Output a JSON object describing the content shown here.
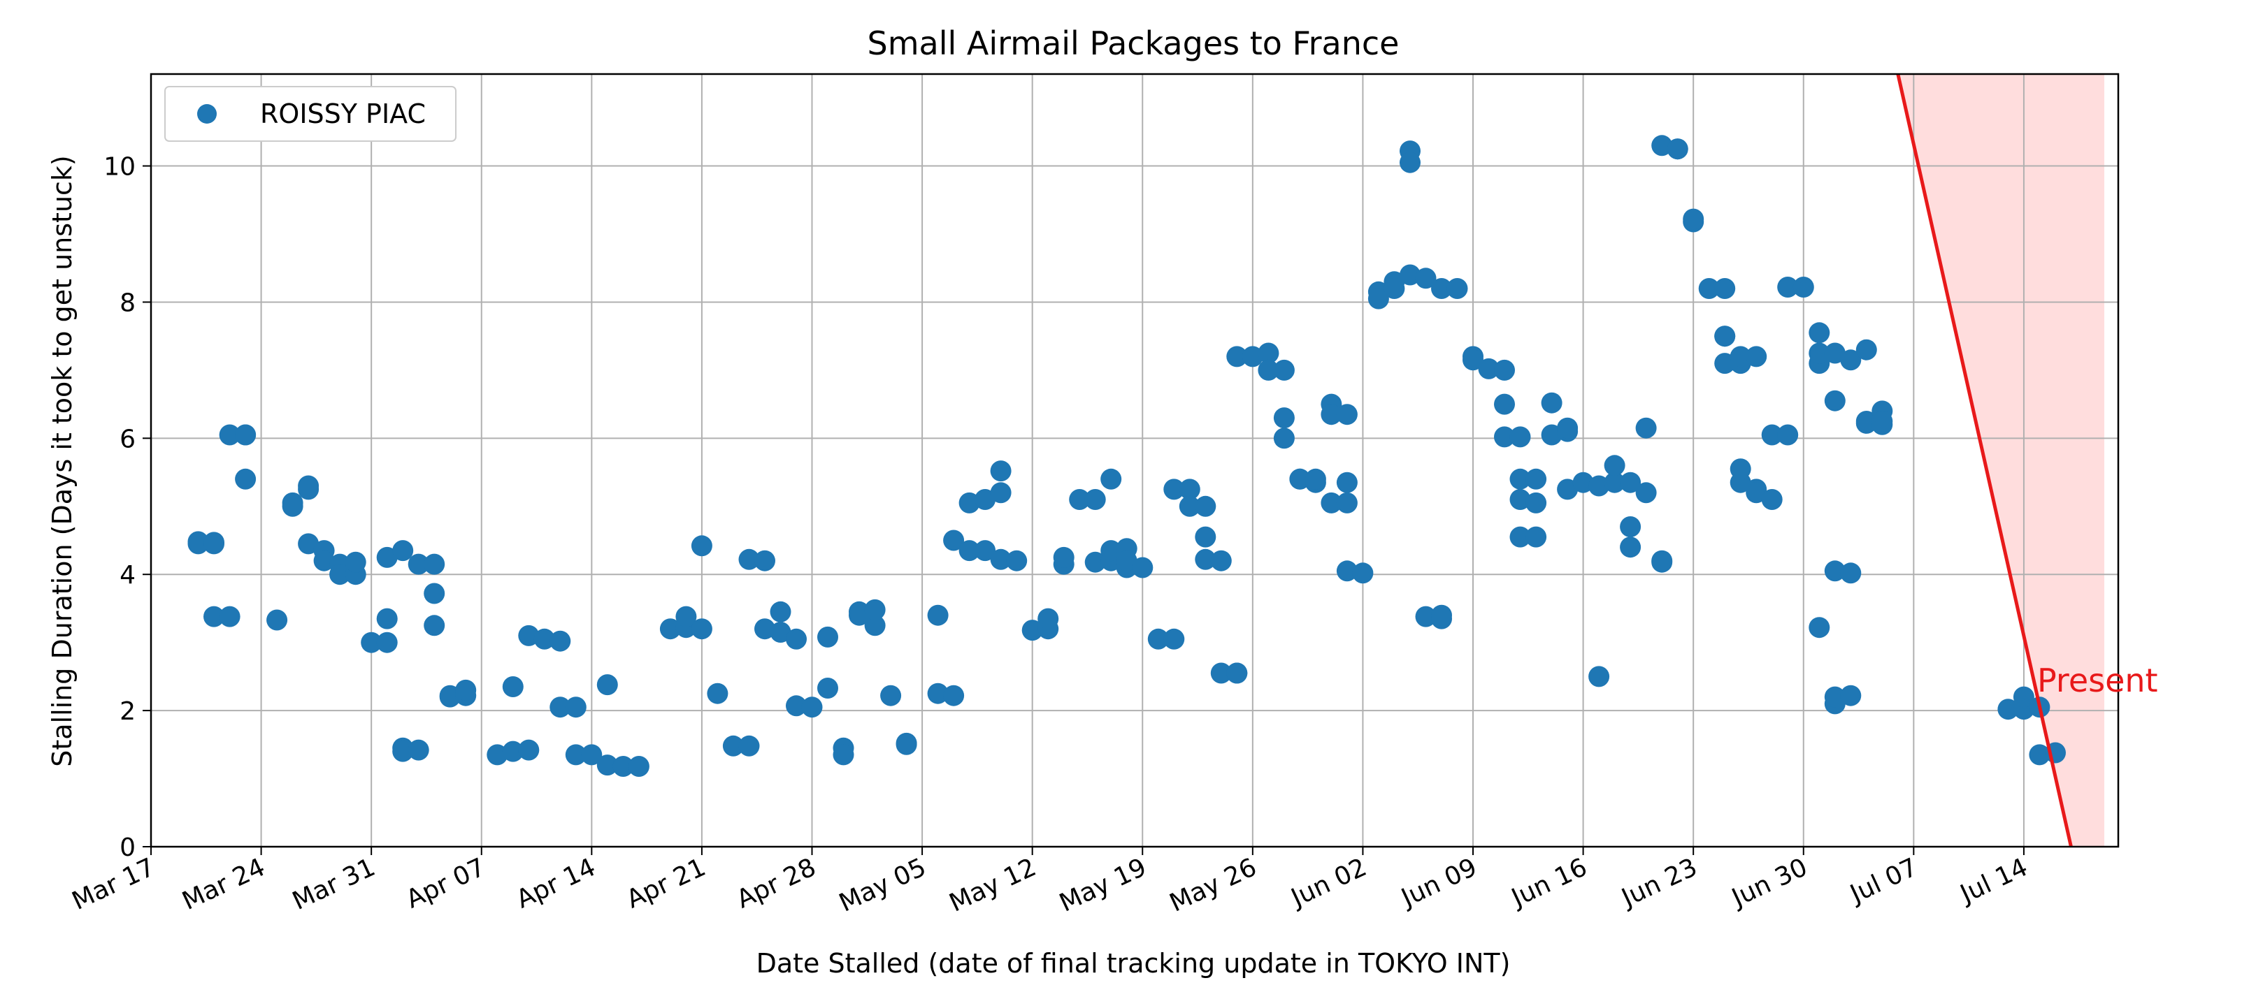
{
  "chart_data": {
    "type": "scatter",
    "title": "Small Airmail Packages to France",
    "xlabel": "Date Stalled (date of final tracking update in TOKYO INT)",
    "ylabel": "Stalling Duration (Days it took to get unstuck)",
    "ylim": [
      0,
      11.35
    ],
    "y_ticks": [
      0,
      2,
      4,
      6,
      8,
      10
    ],
    "xlim": [
      "2024-03-17",
      "2024-07-20"
    ],
    "x_ticks": [
      "2024-03-17",
      "2024-03-24",
      "2024-03-31",
      "2024-04-07",
      "2024-04-14",
      "2024-04-21",
      "2024-04-28",
      "2024-05-05",
      "2024-05-12",
      "2024-05-19",
      "2024-05-26",
      "2024-06-02",
      "2024-06-09",
      "2024-06-16",
      "2024-06-23",
      "2024-06-30",
      "2024-07-07",
      "2024-07-14"
    ],
    "x_tick_labels": [
      "Mar 17",
      "Mar 24",
      "Mar 31",
      "Apr 07",
      "Apr 14",
      "Apr 21",
      "Apr 28",
      "May 05",
      "May 12",
      "May 19",
      "May 26",
      "Jun 02",
      "Jun 09",
      "Jun 16",
      "Jun 23",
      "Jun 30",
      "Jul 07",
      "Jul 14"
    ],
    "grid": true,
    "legend_position": "top-left",
    "series": [
      {
        "name": "ROISSY PIAC",
        "color": "#1f77b4",
        "points": [
          [
            "2024-03-20",
            4.45
          ],
          [
            "2024-03-20",
            4.48
          ],
          [
            "2024-03-21",
            4.45
          ],
          [
            "2024-03-21",
            4.47
          ],
          [
            "2024-03-21",
            3.38
          ],
          [
            "2024-03-22",
            3.38
          ],
          [
            "2024-03-22",
            6.05
          ],
          [
            "2024-03-23",
            6.05
          ],
          [
            "2024-03-23",
            6.05
          ],
          [
            "2024-03-23",
            5.4
          ],
          [
            "2024-03-25",
            3.33
          ],
          [
            "2024-03-26",
            5.0
          ],
          [
            "2024-03-26",
            5.05
          ],
          [
            "2024-03-27",
            5.3
          ],
          [
            "2024-03-27",
            5.25
          ],
          [
            "2024-03-27",
            4.45
          ],
          [
            "2024-03-28",
            4.35
          ],
          [
            "2024-03-28",
            4.2
          ],
          [
            "2024-03-29",
            4.15
          ],
          [
            "2024-03-29",
            4.0
          ],
          [
            "2024-03-30",
            4.0
          ],
          [
            "2024-03-30",
            4.18
          ],
          [
            "2024-03-31",
            3.0
          ],
          [
            "2024-04-01",
            3.0
          ],
          [
            "2024-04-01",
            3.35
          ],
          [
            "2024-04-01",
            4.25
          ],
          [
            "2024-04-02",
            4.35
          ],
          [
            "2024-04-02",
            1.45
          ],
          [
            "2024-04-02",
            1.4
          ],
          [
            "2024-04-03",
            1.42
          ],
          [
            "2024-04-03",
            4.15
          ],
          [
            "2024-04-04",
            4.15
          ],
          [
            "2024-04-04",
            3.25
          ],
          [
            "2024-04-04",
            3.72
          ],
          [
            "2024-04-05",
            2.22
          ],
          [
            "2024-04-05",
            2.2
          ],
          [
            "2024-04-06",
            2.22
          ],
          [
            "2024-04-06",
            2.3
          ],
          [
            "2024-04-08",
            1.35
          ],
          [
            "2024-04-09",
            1.4
          ],
          [
            "2024-04-09",
            2.35
          ],
          [
            "2024-04-10",
            1.42
          ],
          [
            "2024-04-10",
            3.1
          ],
          [
            "2024-04-11",
            3.05
          ],
          [
            "2024-04-12",
            3.02
          ],
          [
            "2024-04-12",
            2.05
          ],
          [
            "2024-04-13",
            2.05
          ],
          [
            "2024-04-13",
            1.35
          ],
          [
            "2024-04-14",
            1.35
          ],
          [
            "2024-04-15",
            2.38
          ],
          [
            "2024-04-15",
            1.2
          ],
          [
            "2024-04-16",
            1.18
          ],
          [
            "2024-04-17",
            1.18
          ],
          [
            "2024-04-19",
            3.2
          ],
          [
            "2024-04-20",
            3.22
          ],
          [
            "2024-04-20",
            3.38
          ],
          [
            "2024-04-21",
            3.2
          ],
          [
            "2024-04-21",
            4.42
          ],
          [
            "2024-04-22",
            2.25
          ],
          [
            "2024-04-23",
            1.48
          ],
          [
            "2024-04-24",
            1.48
          ],
          [
            "2024-04-24",
            4.22
          ],
          [
            "2024-04-25",
            4.2
          ],
          [
            "2024-04-25",
            3.2
          ],
          [
            "2024-04-26",
            3.45
          ],
          [
            "2024-04-26",
            3.15
          ],
          [
            "2024-04-27",
            3.05
          ],
          [
            "2024-04-27",
            2.07
          ],
          [
            "2024-04-28",
            2.05
          ],
          [
            "2024-04-29",
            2.33
          ],
          [
            "2024-04-29",
            3.08
          ],
          [
            "2024-04-30",
            1.45
          ],
          [
            "2024-04-30",
            1.35
          ],
          [
            "2024-05-01",
            3.4
          ],
          [
            "2024-05-01",
            3.45
          ],
          [
            "2024-05-02",
            3.25
          ],
          [
            "2024-05-02",
            3.48
          ],
          [
            "2024-05-03",
            2.22
          ],
          [
            "2024-05-04",
            1.52
          ],
          [
            "2024-05-04",
            1.5
          ],
          [
            "2024-05-06",
            3.4
          ],
          [
            "2024-05-06",
            2.25
          ],
          [
            "2024-05-07",
            2.22
          ],
          [
            "2024-05-07",
            4.5
          ],
          [
            "2024-05-08",
            5.05
          ],
          [
            "2024-05-08",
            4.35
          ],
          [
            "2024-05-09",
            4.35
          ],
          [
            "2024-05-09",
            5.1
          ],
          [
            "2024-05-10",
            5.2
          ],
          [
            "2024-05-10",
            5.52
          ],
          [
            "2024-05-10",
            4.22
          ],
          [
            "2024-05-11",
            4.2
          ],
          [
            "2024-05-12",
            3.18
          ],
          [
            "2024-05-13",
            3.2
          ],
          [
            "2024-05-13",
            3.35
          ],
          [
            "2024-05-14",
            4.15
          ],
          [
            "2024-05-14",
            4.25
          ],
          [
            "2024-05-15",
            5.1
          ],
          [
            "2024-05-16",
            5.1
          ],
          [
            "2024-05-16",
            4.18
          ],
          [
            "2024-05-17",
            4.2
          ],
          [
            "2024-05-17",
            5.4
          ],
          [
            "2024-05-17",
            4.35
          ],
          [
            "2024-05-18",
            4.38
          ],
          [
            "2024-05-18",
            4.1
          ],
          [
            "2024-05-18",
            4.2
          ],
          [
            "2024-05-19",
            4.1
          ],
          [
            "2024-05-20",
            3.05
          ],
          [
            "2024-05-21",
            3.05
          ],
          [
            "2024-05-21",
            5.25
          ],
          [
            "2024-05-22",
            5.25
          ],
          [
            "2024-05-22",
            5.0
          ],
          [
            "2024-05-23",
            5.0
          ],
          [
            "2024-05-23",
            4.55
          ],
          [
            "2024-05-23",
            4.22
          ],
          [
            "2024-05-24",
            4.2
          ],
          [
            "2024-05-24",
            2.55
          ],
          [
            "2024-05-25",
            2.55
          ],
          [
            "2024-05-25",
            2.55
          ],
          [
            "2024-05-25",
            7.2
          ],
          [
            "2024-05-26",
            7.2
          ],
          [
            "2024-05-27",
            7.25
          ],
          [
            "2024-05-27",
            7.0
          ],
          [
            "2024-05-28",
            7.0
          ],
          [
            "2024-05-28",
            6.3
          ],
          [
            "2024-05-28",
            6.0
          ],
          [
            "2024-05-29",
            5.4
          ],
          [
            "2024-05-29",
            5.4
          ],
          [
            "2024-05-30",
            5.35
          ],
          [
            "2024-05-30",
            5.4
          ],
          [
            "2024-05-31",
            5.05
          ],
          [
            "2024-05-31",
            6.5
          ],
          [
            "2024-05-31",
            6.35
          ],
          [
            "2024-06-01",
            6.35
          ],
          [
            "2024-06-01",
            5.35
          ],
          [
            "2024-06-01",
            5.05
          ],
          [
            "2024-06-01",
            4.05
          ],
          [
            "2024-06-02",
            4.02
          ],
          [
            "2024-06-03",
            8.15
          ],
          [
            "2024-06-03",
            8.05
          ],
          [
            "2024-06-04",
            8.3
          ],
          [
            "2024-06-04",
            8.2
          ],
          [
            "2024-06-05",
            8.4
          ],
          [
            "2024-06-05",
            10.22
          ],
          [
            "2024-06-05",
            10.05
          ],
          [
            "2024-06-06",
            8.35
          ],
          [
            "2024-06-06",
            3.38
          ],
          [
            "2024-06-07",
            3.35
          ],
          [
            "2024-06-07",
            3.4
          ],
          [
            "2024-06-07",
            8.2
          ],
          [
            "2024-06-08",
            8.2
          ],
          [
            "2024-06-09",
            7.2
          ],
          [
            "2024-06-09",
            7.15
          ],
          [
            "2024-06-10",
            7.02
          ],
          [
            "2024-06-11",
            7.0
          ],
          [
            "2024-06-11",
            6.02
          ],
          [
            "2024-06-11",
            6.5
          ],
          [
            "2024-06-12",
            6.02
          ],
          [
            "2024-06-12",
            5.4
          ],
          [
            "2024-06-12",
            5.1
          ],
          [
            "2024-06-12",
            4.55
          ],
          [
            "2024-06-13",
            5.4
          ],
          [
            "2024-06-13",
            5.05
          ],
          [
            "2024-06-13",
            4.55
          ],
          [
            "2024-06-14",
            6.52
          ],
          [
            "2024-06-14",
            6.05
          ],
          [
            "2024-06-15",
            6.1
          ],
          [
            "2024-06-15",
            6.15
          ],
          [
            "2024-06-15",
            5.25
          ],
          [
            "2024-06-16",
            5.35
          ],
          [
            "2024-06-17",
            2.5
          ],
          [
            "2024-06-17",
            5.3
          ],
          [
            "2024-06-18",
            5.35
          ],
          [
            "2024-06-18",
            5.6
          ],
          [
            "2024-06-19",
            5.35
          ],
          [
            "2024-06-19",
            4.4
          ],
          [
            "2024-06-19",
            4.7
          ],
          [
            "2024-06-20",
            5.2
          ],
          [
            "2024-06-20",
            6.15
          ],
          [
            "2024-06-21",
            4.2
          ],
          [
            "2024-06-21",
            4.18
          ],
          [
            "2024-06-21",
            10.3
          ],
          [
            "2024-06-22",
            10.25
          ],
          [
            "2024-06-22",
            10.25
          ],
          [
            "2024-06-23",
            9.18
          ],
          [
            "2024-06-23",
            9.22
          ],
          [
            "2024-06-24",
            8.2
          ],
          [
            "2024-06-25",
            8.2
          ],
          [
            "2024-06-25",
            7.5
          ],
          [
            "2024-06-25",
            7.5
          ],
          [
            "2024-06-25",
            7.1
          ],
          [
            "2024-06-26",
            7.1
          ],
          [
            "2024-06-26",
            7.2
          ],
          [
            "2024-06-27",
            7.2
          ],
          [
            "2024-06-26",
            5.35
          ],
          [
            "2024-06-26",
            5.55
          ],
          [
            "2024-06-27",
            5.25
          ],
          [
            "2024-06-27",
            5.2
          ],
          [
            "2024-06-28",
            5.1
          ],
          [
            "2024-06-28",
            6.05
          ],
          [
            "2024-06-29",
            6.05
          ],
          [
            "2024-06-29",
            8.22
          ],
          [
            "2024-06-30",
            8.22
          ],
          [
            "2024-07-01",
            7.1
          ],
          [
            "2024-07-01",
            7.25
          ],
          [
            "2024-07-01",
            7.55
          ],
          [
            "2024-07-01",
            3.22
          ],
          [
            "2024-07-02",
            6.55
          ],
          [
            "2024-07-02",
            7.25
          ],
          [
            "2024-07-02",
            4.05
          ],
          [
            "2024-07-02",
            2.1
          ],
          [
            "2024-07-02",
            2.2
          ],
          [
            "2024-07-03",
            2.22
          ],
          [
            "2024-07-03",
            4.02
          ],
          [
            "2024-07-03",
            7.15
          ],
          [
            "2024-07-04",
            7.3
          ],
          [
            "2024-07-04",
            6.25
          ],
          [
            "2024-07-04",
            6.22
          ],
          [
            "2024-07-05",
            6.2
          ],
          [
            "2024-07-05",
            6.4
          ],
          [
            "2024-07-05",
            6.25
          ],
          [
            "2024-07-13",
            2.02
          ],
          [
            "2024-07-14",
            2.02
          ],
          [
            "2024-07-14",
            2.2
          ],
          [
            "2024-07-15",
            2.05
          ],
          [
            "2024-07-15",
            1.35
          ],
          [
            "2024-07-16",
            1.38
          ]
        ]
      }
    ],
    "present_line": {
      "label": "Present",
      "color": "#e8191a",
      "fill_color": "#ffdddd",
      "top": [
        "2024-07-06",
        11.35
      ],
      "bottom": [
        "2024-07-17",
        0
      ]
    }
  }
}
